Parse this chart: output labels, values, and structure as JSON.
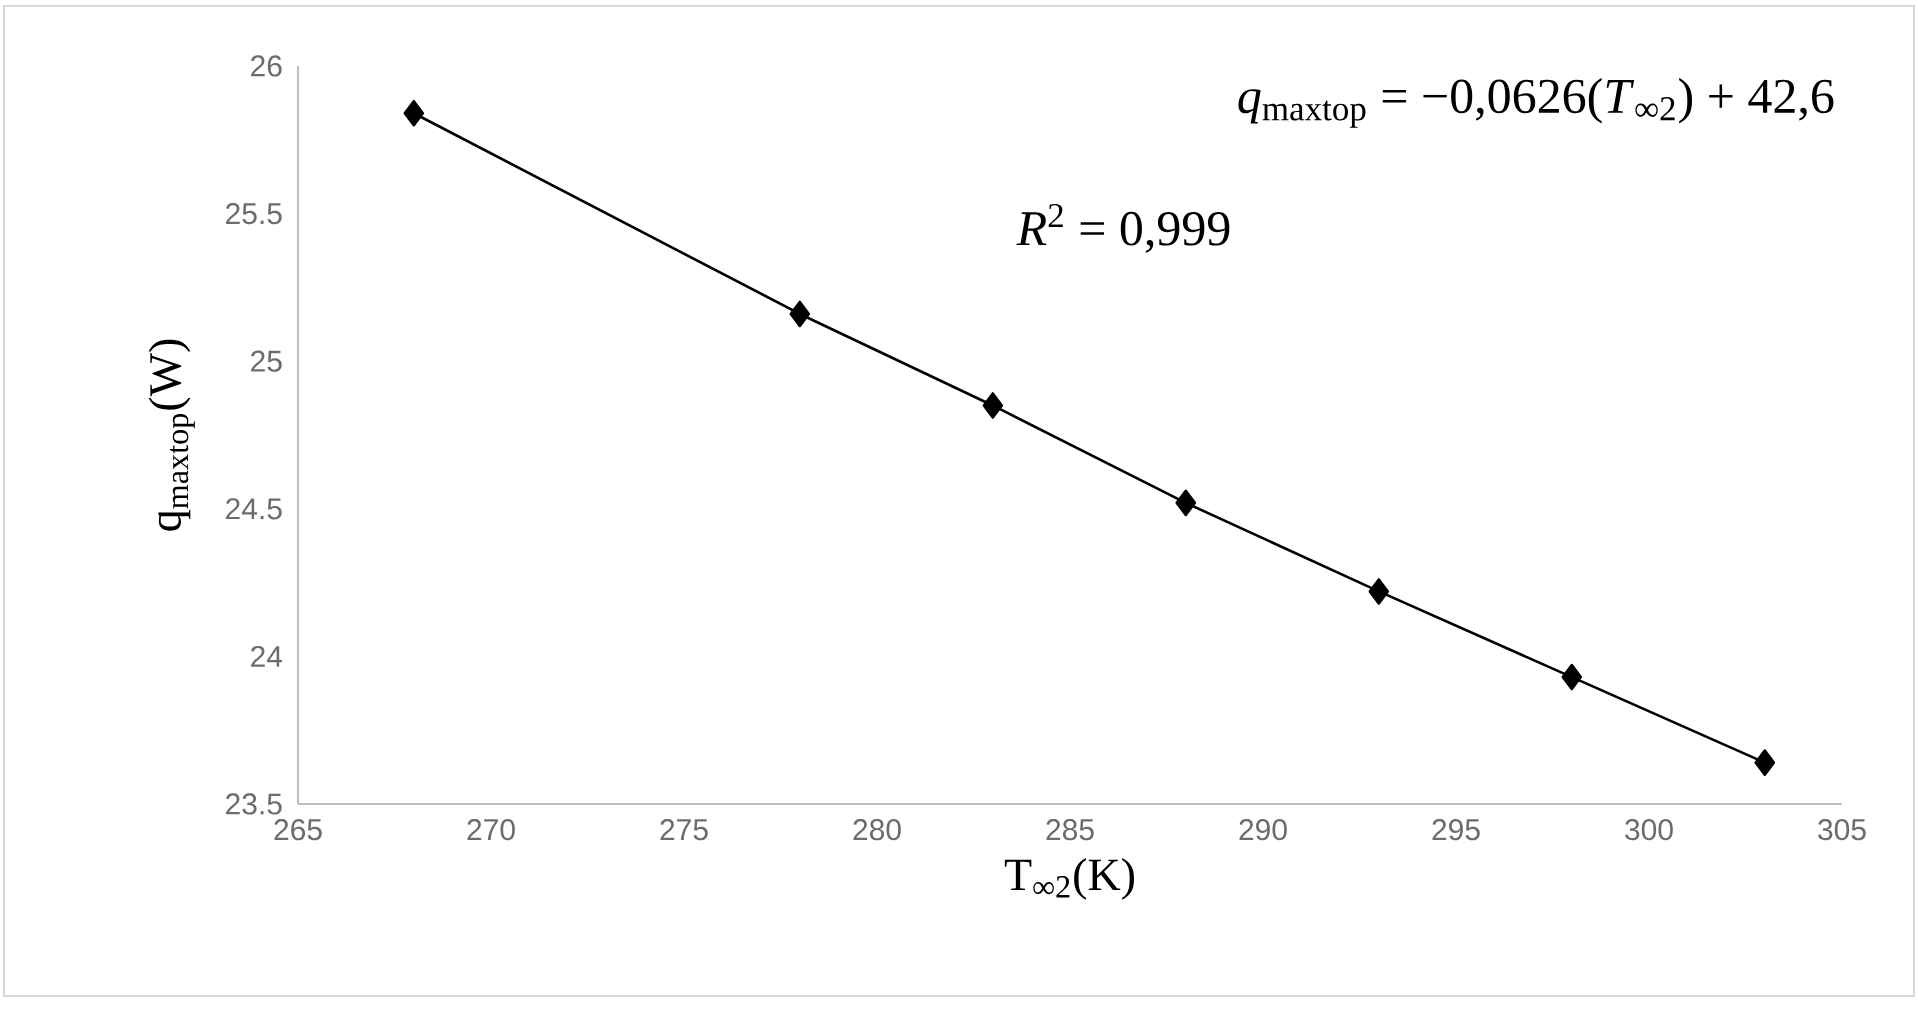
{
  "chart_data": {
    "type": "line",
    "xlabel": "T$_{∞2}$(K)",
    "ylabel": "q$_{maxtop}$(W)",
    "x": [
      268,
      278,
      283,
      288,
      293,
      298,
      303
    ],
    "series": [
      {
        "color": "#000000",
        "values": [
          25.84,
          25.16,
          24.85,
          24.52,
          24.22,
          23.93,
          23.64
        ]
      }
    ],
    "xlim": [
      265,
      305
    ],
    "xticks": [
      265,
      270,
      275,
      280,
      285,
      290,
      295,
      300,
      305
    ],
    "ylim": [
      23.5,
      26
    ],
    "yticks": [
      23.5,
      24,
      24.5,
      25,
      25.5,
      26
    ],
    "marker": "diamond",
    "line_style": "solid",
    "annotations": [
      "*q*$_{maxtop}$ = −0,0626(*T*$_{∞2}$) + 42,6",
      "*R*$^{2}$ = 0,999"
    ]
  }
}
